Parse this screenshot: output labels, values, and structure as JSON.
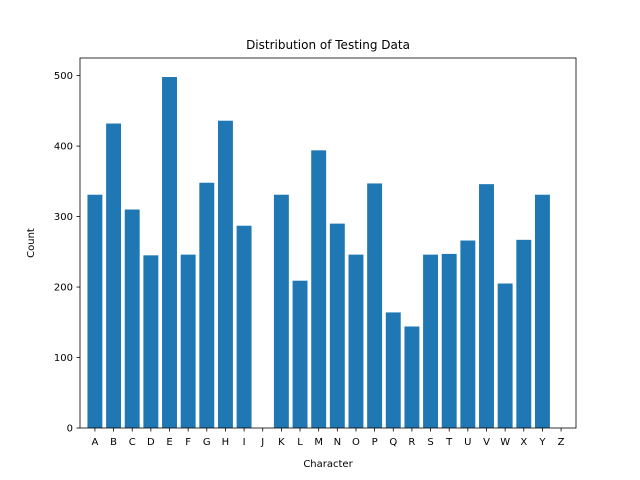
{
  "chart_data": {
    "type": "bar",
    "title": "Distribution of Testing Data",
    "xlabel": "Character",
    "ylabel": "Count",
    "ylim": [
      0,
      525
    ],
    "yticks": [
      0,
      100,
      200,
      300,
      400,
      500
    ],
    "categories": [
      "A",
      "B",
      "C",
      "D",
      "E",
      "F",
      "G",
      "H",
      "I",
      "J",
      "K",
      "L",
      "M",
      "N",
      "O",
      "P",
      "Q",
      "R",
      "S",
      "T",
      "U",
      "V",
      "W",
      "X",
      "Y",
      "Z"
    ],
    "values": [
      331,
      432,
      310,
      245,
      498,
      246,
      348,
      436,
      287,
      0,
      331,
      209,
      394,
      290,
      246,
      347,
      164,
      144,
      246,
      247,
      266,
      346,
      205,
      267,
      331,
      0
    ],
    "color": "#1f77b4",
    "grid": false,
    "legend": "none"
  }
}
